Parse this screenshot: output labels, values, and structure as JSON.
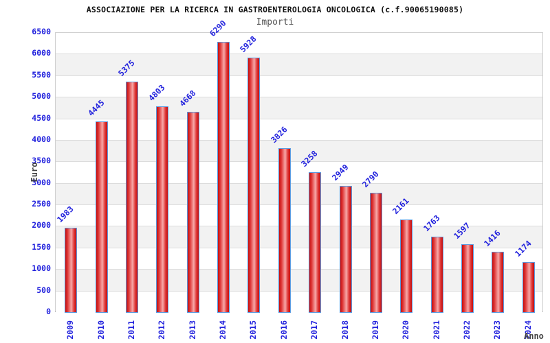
{
  "chart_data": {
    "type": "bar",
    "title": "ASSOCIAZIONE PER LA RICERCA IN GASTROENTEROLOGIA ONCOLOGICA (c.f.90065190085)",
    "subtitle": "Importi",
    "xlabel": "Anno",
    "ylabel": "Euro",
    "categories": [
      "2009",
      "2010",
      "2011",
      "2012",
      "2013",
      "2014",
      "2015",
      "2016",
      "2017",
      "2018",
      "2019",
      "2020",
      "2021",
      "2022",
      "2023",
      "2024"
    ],
    "values": [
      1983,
      4445,
      5375,
      4803,
      4668,
      6290,
      5928,
      3826,
      3258,
      2949,
      2790,
      2161,
      1763,
      1597,
      1416,
      1174
    ],
    "ylim": [
      0,
      6500
    ],
    "ytick_step": 500,
    "yticks": [
      0,
      500,
      1000,
      1500,
      2000,
      2500,
      3000,
      3500,
      4000,
      4500,
      5000,
      5500,
      6000,
      6500
    ],
    "legend": "none",
    "grid": "horizontal alternating bands",
    "colors": {
      "bar_fill_dark": "#c40f0f",
      "bar_fill_mid": "#de3535",
      "bar_fill_light": "#f7a8a8",
      "bar_border": "#5a9ae0",
      "tick_label": "#2222dd",
      "value_label": "#2222dd",
      "axis_label": "#444444",
      "title": "#111111",
      "subtitle": "#555555",
      "band_gray": "#f2f2f2",
      "band_white": "#ffffff",
      "grid_line": "#dcdcdc",
      "axis_line": "#a8a8a8"
    }
  }
}
